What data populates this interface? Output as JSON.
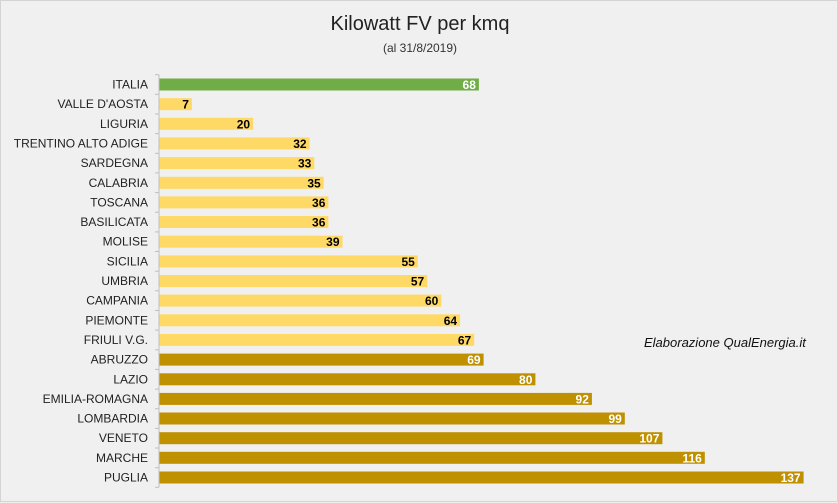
{
  "chart_data": {
    "type": "bar",
    "orientation": "horizontal",
    "title": "Kilowatt FV per kmq",
    "subtitle": "(al 31/8/2019)",
    "annotation": "Elaborazione QualEnergia.it",
    "xlabel": "",
    "ylabel": "",
    "categories": [
      "ITALIA",
      "VALLE D'AOSTA",
      "LIGURIA",
      "TRENTINO ALTO ADIGE",
      "SARDEGNA",
      "CALABRIA",
      "TOSCANA",
      "BASILICATA",
      "MOLISE",
      "SICILIA",
      "UMBRIA",
      "CAMPANIA",
      "PIEMONTE",
      "FRIULI V.G.",
      "ABRUZZO",
      "LAZIO",
      "EMILIA-ROMAGNA",
      "LOMBARDIA",
      "VENETO",
      "MARCHE",
      "PUGLIA"
    ],
    "values": [
      68,
      7,
      20,
      32,
      33,
      35,
      36,
      36,
      39,
      55,
      57,
      60,
      64,
      67,
      69,
      80,
      92,
      99,
      107,
      116,
      137
    ],
    "bar_groups": [
      "total",
      "below",
      "below",
      "below",
      "below",
      "below",
      "below",
      "below",
      "below",
      "below",
      "below",
      "below",
      "below",
      "below",
      "above",
      "above",
      "above",
      "above",
      "above",
      "above",
      "above"
    ],
    "colors": {
      "total": "#70ad47",
      "below": "#ffd966",
      "above": "#bf9000"
    },
    "label_colors": {
      "total": "#ffffff",
      "below": "#000000",
      "above": "#ffffff"
    },
    "xlim": [
      0,
      137
    ],
    "grid": false,
    "legend": "none"
  }
}
